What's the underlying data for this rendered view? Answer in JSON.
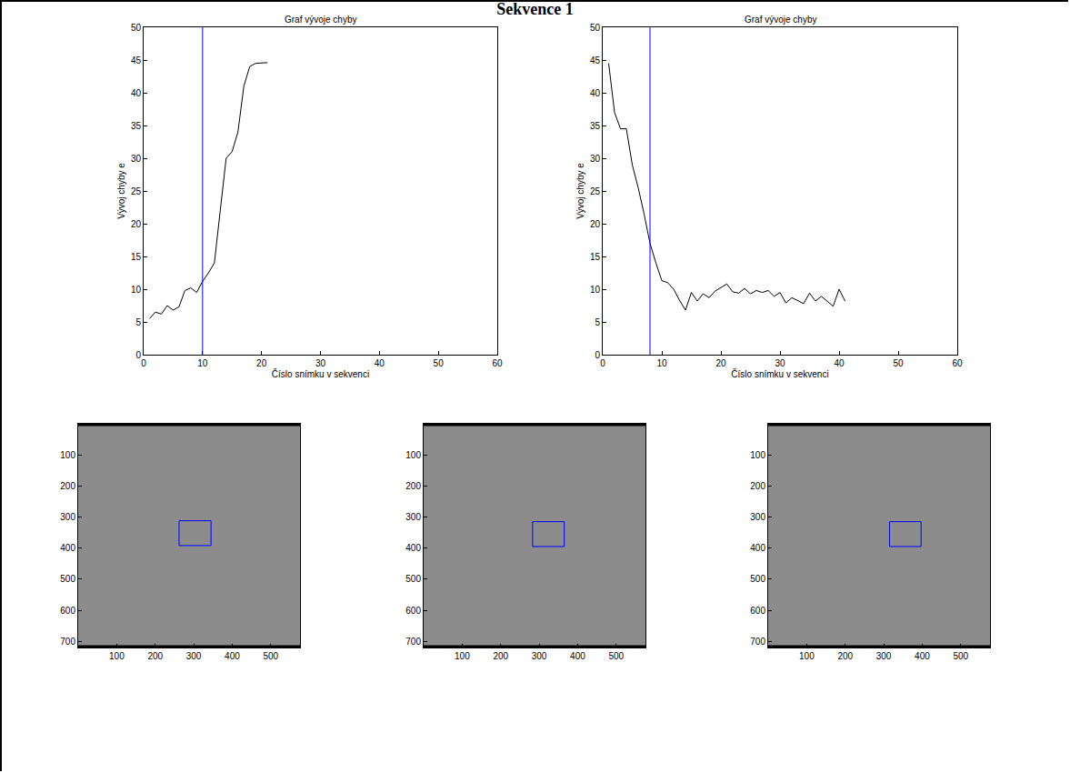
{
  "title": "Sekvence 1",
  "chart_data": [
    {
      "type": "line",
      "title": "Graf vývoje chyby",
      "x_label": "Číslo snímku v sekvenci",
      "y_label": "Vývoj chyby e",
      "x": [
        1,
        2,
        3,
        4,
        5,
        6,
        7,
        8,
        9,
        10,
        11,
        12,
        13,
        14,
        15,
        16,
        17,
        18,
        19,
        20,
        21
      ],
      "values": [
        5.5,
        6.5,
        6.2,
        7.5,
        6.8,
        7.3,
        9.8,
        10.2,
        9.5,
        11.2,
        12.5,
        14,
        22,
        30,
        31,
        34,
        41,
        44,
        44.5,
        44.5,
        44.6
      ],
      "color": "#000000",
      "vline": {
        "x": 10,
        "color": "#0000ff"
      },
      "xlim": [
        0,
        60
      ],
      "ylim": [
        0,
        50
      ],
      "xticks": [
        0,
        10,
        20,
        30,
        40,
        50,
        60
      ],
      "yticks": [
        0,
        5,
        10,
        15,
        20,
        25,
        30,
        35,
        40,
        45,
        50
      ]
    },
    {
      "type": "line",
      "title": "Graf vývoje chyby",
      "x_label": "Číslo snímku v sekvenci",
      "y_label": "Vývoj chyby e",
      "x": [
        1,
        2,
        3,
        4,
        5,
        6,
        7,
        8,
        9,
        10,
        11,
        12,
        13,
        14,
        15,
        16,
        17,
        18,
        19,
        20,
        21,
        22,
        23,
        24,
        25,
        26,
        27,
        28,
        29,
        30,
        31,
        32,
        33,
        34,
        35,
        36,
        37,
        38,
        39,
        40,
        41
      ],
      "values": [
        44.5,
        37,
        34.5,
        34.5,
        29,
        25.5,
        21.5,
        17,
        14,
        11.3,
        11,
        10,
        8.3,
        6.8,
        9.5,
        8.2,
        9.3,
        8.7,
        9.7,
        10.2,
        10.8,
        9.6,
        9.4,
        10.1,
        9.3,
        9.8,
        9.5,
        9.8,
        8.9,
        9.5,
        7.9,
        8.7,
        8.3,
        7.8,
        9.4,
        8.2,
        8.9,
        8.2,
        7.4,
        10,
        8.2
      ],
      "color": "#000000",
      "vline": {
        "x": 8,
        "color": "#0000ff"
      },
      "xlim": [
        0,
        60
      ],
      "ylim": [
        0,
        50
      ],
      "xticks": [
        0,
        10,
        20,
        30,
        40,
        50,
        60
      ],
      "yticks": [
        0,
        5,
        10,
        15,
        20,
        25,
        30,
        35,
        40,
        45,
        50
      ]
    },
    {
      "type": "image",
      "xlim": [
        0,
        576
      ],
      "ylim": [
        720,
        0
      ],
      "xticks": [
        100,
        200,
        300,
        400,
        500
      ],
      "yticks": [
        100,
        200,
        300,
        400,
        500,
        600,
        700
      ],
      "box": {
        "x0": 262,
        "x1": 345,
        "y0": 312,
        "y1": 392,
        "color": "#0000ff"
      }
    },
    {
      "type": "image",
      "xlim": [
        0,
        576
      ],
      "ylim": [
        720,
        0
      ],
      "xticks": [
        100,
        200,
        300,
        400,
        500
      ],
      "yticks": [
        100,
        200,
        300,
        400,
        500,
        600,
        700
      ],
      "box": {
        "x0": 283,
        "x1": 365,
        "y0": 315,
        "y1": 395,
        "color": "#0000ff"
      }
    },
    {
      "type": "image",
      "xlim": [
        0,
        576
      ],
      "ylim": [
        720,
        0
      ],
      "xticks": [
        100,
        200,
        300,
        400,
        500
      ],
      "yticks": [
        100,
        200,
        300,
        400,
        500,
        600,
        700
      ],
      "box": {
        "x0": 315,
        "x1": 397,
        "y0": 315,
        "y1": 395,
        "color": "#0000ff"
      }
    }
  ]
}
